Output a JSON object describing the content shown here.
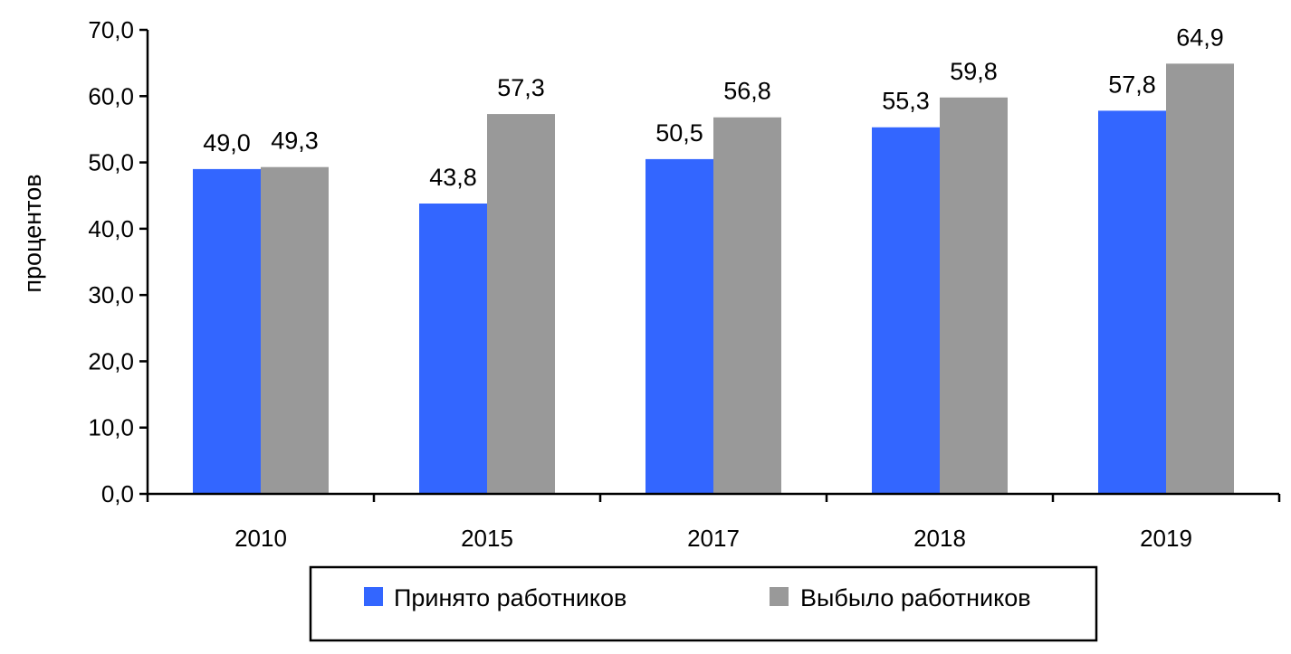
{
  "chart_data": {
    "type": "bar",
    "title": "",
    "xlabel": "",
    "ylabel": "процентов",
    "categories": [
      "2010",
      "2015",
      "2017",
      "2018",
      "2019"
    ],
    "series": [
      {
        "name": "Принято работников",
        "values": [
          49.0,
          43.8,
          50.5,
          55.3,
          57.8
        ],
        "color": "#3366ff"
      },
      {
        "name": "Выбыло работников",
        "values": [
          49.3,
          57.3,
          56.8,
          59.8,
          64.9
        ],
        "color": "#999999"
      }
    ],
    "value_labels": [
      [
        "49,0",
        "43,8",
        "50,5",
        "55,3",
        "57,8"
      ],
      [
        "49,3",
        "57,3",
        "56,8",
        "59,8",
        "64,9"
      ]
    ],
    "ylim": [
      0,
      70
    ],
    "yticks": [
      0,
      10,
      20,
      30,
      40,
      50,
      60,
      70
    ],
    "ytick_labels": [
      "0,0",
      "10,0",
      "20,0",
      "30,0",
      "40,0",
      "50,0",
      "60,0",
      "70,0"
    ],
    "grid": false,
    "legend_position": "bottom"
  }
}
